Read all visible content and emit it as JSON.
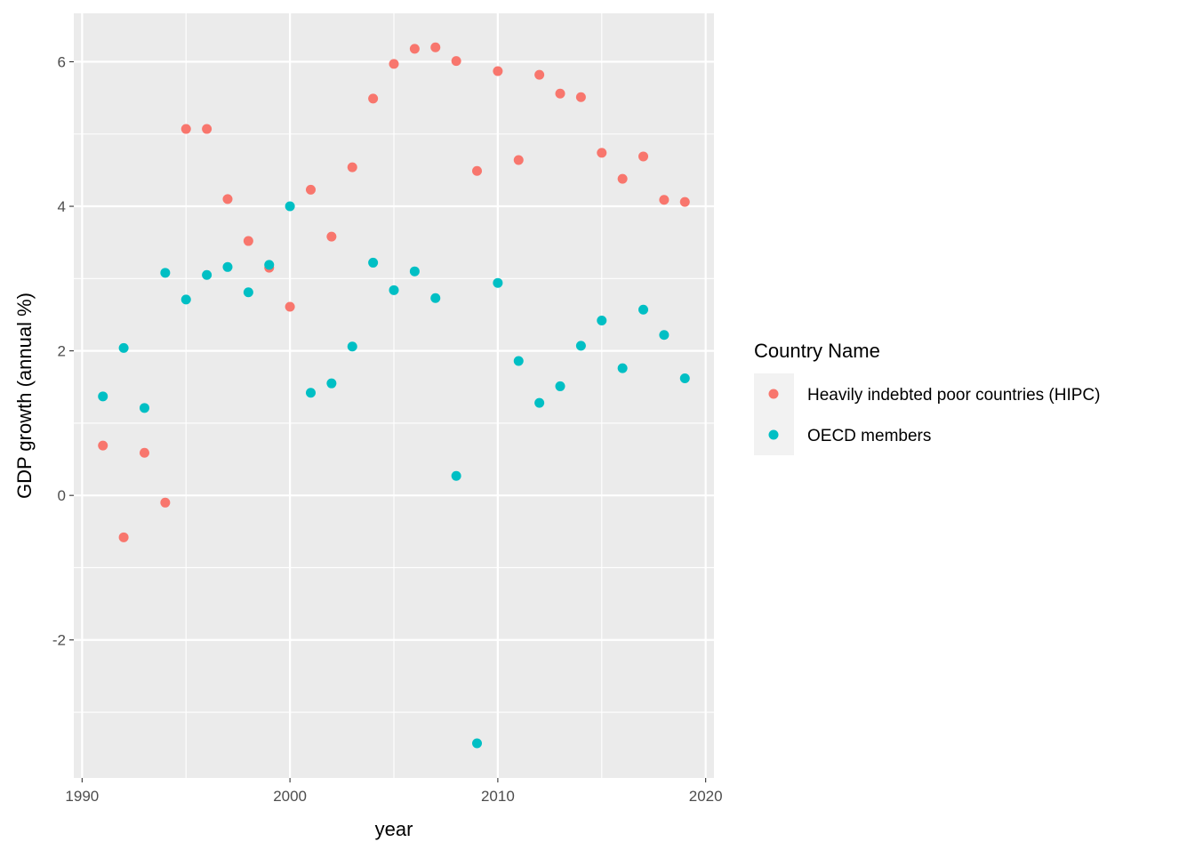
{
  "chart_data": {
    "type": "scatter",
    "title": "",
    "xlabel": "year",
    "ylabel": "GDP growth (annual %)",
    "xlim": [
      1989.6,
      2020.4
    ],
    "ylim": [
      -3.91,
      6.67
    ],
    "xticks": [
      1990,
      2000,
      2010,
      2020
    ],
    "yticks": [
      -2,
      0,
      2,
      4,
      6
    ],
    "grid": true,
    "legend": {
      "title": "Country Name",
      "placement": "right"
    },
    "x": [
      1991,
      1992,
      1993,
      1994,
      1995,
      1996,
      1997,
      1998,
      1999,
      2000,
      2001,
      2002,
      2003,
      2004,
      2005,
      2006,
      2007,
      2008,
      2009,
      2010,
      2011,
      2012,
      2013,
      2014,
      2015,
      2016,
      2017,
      2018,
      2019
    ],
    "series": [
      {
        "name": "Heavily indebted poor countries (HIPC)",
        "color": "#F8766D",
        "values": [
          0.69,
          -0.58,
          0.59,
          -0.1,
          5.07,
          5.07,
          4.1,
          3.52,
          3.15,
          2.61,
          4.23,
          3.58,
          4.54,
          5.49,
          5.97,
          6.18,
          6.2,
          6.01,
          4.49,
          5.87,
          4.64,
          5.82,
          5.56,
          5.51,
          4.74,
          4.38,
          4.69,
          4.09,
          4.06
        ]
      },
      {
        "name": "OECD members",
        "color": "#00BFC4",
        "values": [
          1.37,
          2.04,
          1.21,
          3.08,
          2.71,
          3.05,
          3.16,
          2.81,
          3.19,
          4.0,
          1.42,
          1.55,
          2.06,
          3.22,
          2.84,
          3.1,
          2.73,
          0.27,
          -3.43,
          2.94,
          1.86,
          1.28,
          1.51,
          2.07,
          2.42,
          1.76,
          2.57,
          2.22,
          1.62
        ]
      }
    ]
  }
}
